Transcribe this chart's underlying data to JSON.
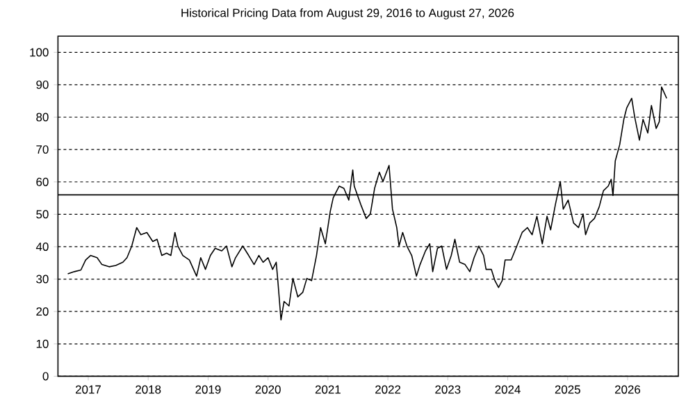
{
  "chart_data": {
    "type": "line",
    "title": "Historical Pricing Data from August 29, 2016 to August 27, 2026",
    "x": [
      "2016-08-29",
      "2016-10-08",
      "2016-11-17",
      "2016-12-16",
      "2017-01-15",
      "2017-02-24",
      "2017-03-25",
      "2017-05-08",
      "2017-06-17",
      "2017-07-31",
      "2017-08-25",
      "2017-09-23",
      "2017-10-23",
      "2017-11-17",
      "2017-12-24",
      "2018-01-29",
      "2018-02-24",
      "2018-03-25",
      "2018-04-23",
      "2018-05-19",
      "2018-06-13",
      "2018-07-01",
      "2018-07-31",
      "2018-09-09",
      "2018-10-23",
      "2018-11-17",
      "2018-12-16",
      "2019-01-15",
      "2019-02-13",
      "2019-03-25",
      "2019-04-23",
      "2019-05-26",
      "2019-06-17",
      "2019-07-31",
      "2019-09-05",
      "2019-10-08",
      "2019-11-06",
      "2019-12-02",
      "2020-01-01",
      "2020-01-29",
      "2020-02-20",
      "2020-03-02",
      "2020-03-20",
      "2020-04-08",
      "2020-05-08",
      "2020-06-01",
      "2020-07-01",
      "2020-07-31",
      "2020-08-25",
      "2020-09-23",
      "2020-10-23",
      "2020-11-17",
      "2020-12-16",
      "2021-01-15",
      "2021-02-02",
      "2021-03-10",
      "2021-04-08",
      "2021-05-08",
      "2021-06-01",
      "2021-06-10",
      "2021-07-20",
      "2021-08-22",
      "2021-09-16",
      "2021-10-12",
      "2021-11-10",
      "2021-12-02",
      "2022-01-08",
      "2022-01-29",
      "2022-02-24",
      "2022-03-10",
      "2022-04-01",
      "2022-04-27",
      "2022-05-26",
      "2022-06-24",
      "2022-07-16",
      "2022-08-18",
      "2022-09-13",
      "2022-10-01",
      "2022-10-30",
      "2022-11-25",
      "2022-12-24",
      "2023-01-22",
      "2023-02-13",
      "2023-03-14",
      "2023-04-16",
      "2023-05-15",
      "2023-06-10",
      "2023-07-09",
      "2023-08-07",
      "2023-08-22",
      "2023-09-23",
      "2023-10-15",
      "2023-11-06",
      "2023-11-28",
      "2023-12-16",
      "2024-01-22",
      "2024-02-20",
      "2024-03-29",
      "2024-04-30",
      "2024-05-29",
      "2024-06-27",
      "2024-07-30",
      "2024-08-28",
      "2024-09-19",
      "2024-10-18",
      "2024-11-17",
      "2024-12-05",
      "2025-01-04",
      "2025-02-06",
      "2025-03-08",
      "2025-04-05",
      "2025-04-20",
      "2025-05-15",
      "2025-06-13",
      "2025-07-12",
      "2025-08-07",
      "2025-09-05",
      "2025-09-23",
      "2025-10-04",
      "2025-10-18",
      "2025-11-14",
      "2025-12-09",
      "2025-12-27",
      "2026-01-26",
      "2026-02-13",
      "2026-03-14",
      "2026-04-05",
      "2026-05-04",
      "2026-05-26",
      "2026-06-24",
      "2026-07-13",
      "2026-07-27",
      "2026-08-27"
    ],
    "values": [
      31.6,
      32.3,
      32.8,
      35.9,
      37.3,
      36.6,
      34.5,
      33.8,
      34.2,
      35.2,
      36.6,
      40.2,
      45.9,
      43.7,
      44.4,
      41.6,
      42.3,
      37.3,
      38.0,
      37.3,
      44.4,
      40.2,
      37.3,
      35.9,
      30.9,
      36.6,
      33.0,
      37.3,
      39.5,
      38.7,
      40.2,
      33.8,
      36.6,
      40.2,
      37.3,
      34.5,
      37.3,
      35.2,
      36.6,
      33.0,
      35.2,
      28.8,
      17.4,
      23.1,
      21.7,
      30.2,
      24.5,
      25.9,
      30.2,
      29.5,
      37.3,
      45.9,
      40.9,
      50.9,
      55.1,
      58.7,
      58.0,
      54.4,
      63.7,
      58.7,
      53.0,
      48.7,
      50.1,
      58.0,
      63.0,
      60.1,
      65.1,
      51.6,
      45.9,
      40.2,
      44.4,
      40.2,
      37.3,
      30.9,
      34.5,
      38.7,
      40.9,
      32.3,
      39.5,
      40.2,
      33.0,
      37.3,
      42.3,
      35.2,
      34.5,
      32.3,
      36.6,
      40.2,
      37.3,
      33.0,
      33.0,
      29.5,
      27.4,
      29.5,
      35.9,
      35.9,
      39.5,
      44.4,
      45.9,
      43.7,
      49.4,
      40.9,
      49.4,
      45.2,
      53.0,
      60.1,
      51.6,
      54.4,
      47.3,
      45.9,
      50.1,
      43.7,
      47.3,
      48.7,
      52.3,
      57.3,
      58.7,
      60.8,
      55.8,
      66.5,
      71.5,
      79.3,
      82.9,
      85.8,
      80.1,
      72.9,
      79.3,
      75.1,
      83.6,
      76.5,
      78.6,
      89.3,
      85.8
    ],
    "color": "#000000",
    "xlim": [
      "2016-06-30",
      "2026-11-06"
    ],
    "xticks": [
      "2017",
      "2018",
      "2019",
      "2020",
      "2021",
      "2022",
      "2023",
      "2024",
      "2025",
      "2026"
    ],
    "ylim": [
      0,
      105
    ],
    "yticks": [
      0,
      10,
      20,
      30,
      40,
      50,
      60,
      70,
      80,
      90,
      100
    ],
    "grid": "y",
    "ref_lines": [
      {
        "axis": "y",
        "value": 56,
        "color": "#000000"
      }
    ]
  }
}
